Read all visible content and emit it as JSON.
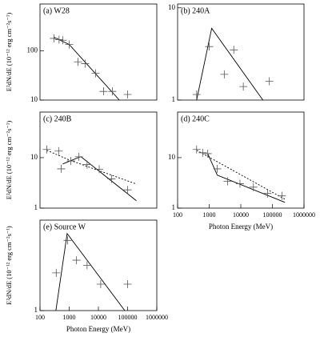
{
  "chart_data": [
    {
      "type": "scatter",
      "title": "(a) W28",
      "ylabel": "E²dN/dE (10⁻¹² erg cm⁻²s⁻¹)",
      "log_x": true,
      "log_y": true,
      "xlim": [
        100,
        1000000
      ],
      "ylim": [
        10,
        900
      ],
      "yticks": [
        10,
        100
      ],
      "points": {
        "x": [
          300,
          450,
          600,
          1000,
          2000,
          3500,
          8000,
          15000,
          30000,
          100000
        ],
        "y": [
          180,
          170,
          165,
          135,
          60,
          55,
          35,
          15,
          15,
          13
        ]
      },
      "model": {
        "x": [
          300,
          1000,
          52000
        ],
        "y": [
          190,
          135,
          10
        ]
      }
    },
    {
      "type": "scatter",
      "title": "(b) 240A",
      "log_x": true,
      "log_y": true,
      "xlim": [
        100,
        1000000
      ],
      "ylim": [
        1,
        11
      ],
      "yticks": [
        1,
        10
      ],
      "points": {
        "x": [
          400,
          1000,
          3000,
          6000,
          12000,
          80000
        ],
        "y": [
          1.15,
          3.8,
          1.9,
          3.5,
          1.4,
          1.6
        ]
      },
      "model": {
        "x": [
          400,
          1200,
          50000
        ],
        "y": [
          1,
          6,
          1
        ]
      }
    },
    {
      "type": "scatter",
      "title": "(c) 240B",
      "ylabel": "E²dN/dE (10⁻¹² erg cm⁻²s⁻¹)",
      "log_x": true,
      "log_y": true,
      "xlim": [
        100,
        1000000
      ],
      "ylim": [
        1,
        80
      ],
      "yticks": [
        1,
        10
      ],
      "points": {
        "x": [
          170,
          435,
          530,
          1140,
          2150,
          4100,
          10700,
          28000,
          100000
        ],
        "y": [
          14.5,
          13.5,
          6,
          8.6,
          10.4,
          7.3,
          5.9,
          3.8,
          2.3
        ]
      },
      "model": {
        "x": [
          600,
          2500,
          200000
        ],
        "y": [
          7.5,
          10.5,
          1.4
        ]
      },
      "dashed": {
        "x": [
          170,
          1000,
          200000
        ],
        "y": [
          14,
          9,
          3
        ]
      }
    },
    {
      "type": "scatter",
      "title": "(d) 240C",
      "xlabel": "Photon Energy (MeV)",
      "log_x": true,
      "log_y": true,
      "xlim": [
        100,
        1000000
      ],
      "ylim": [
        1,
        80
      ],
      "yticks": [
        1,
        10
      ],
      "xticks": [
        100,
        1000,
        10000,
        100000,
        1000000
      ],
      "points": {
        "x": [
          400,
          620,
          900,
          1800,
          3800,
          9400,
          25000,
          70000,
          200000
        ],
        "y": [
          14.5,
          12.5,
          12,
          6,
          3.4,
          3.05,
          2.6,
          1.95,
          1.75
        ]
      },
      "model": {
        "x": [
          900,
          1800,
          250000
        ],
        "y": [
          12,
          4.5,
          1.3
        ]
      },
      "dashed": {
        "x": [
          400,
          250000
        ],
        "y": [
          14,
          1.5
        ]
      }
    },
    {
      "type": "scatter",
      "title": "(e) Source W",
      "ylabel": "E²dN/dE (10⁻¹² erg cm⁻²s⁻¹)",
      "xlabel": "Photon Energy (MeV)",
      "log_x": true,
      "log_y": true,
      "xlim": [
        100,
        1000000
      ],
      "ylim": [
        1,
        9
      ],
      "yticks": [
        1
      ],
      "xticks": [
        100,
        1000,
        10000,
        100000,
        1000000
      ],
      "points": {
        "x": [
          360,
          880,
          1780,
          4100,
          12000,
          100000
        ],
        "y": [
          2.5,
          5.5,
          3.4,
          3.0,
          1.9,
          1.9
        ]
      },
      "model": {
        "x": [
          350,
          850,
          80000
        ],
        "y": [
          1,
          6.5,
          1
        ]
      }
    }
  ]
}
